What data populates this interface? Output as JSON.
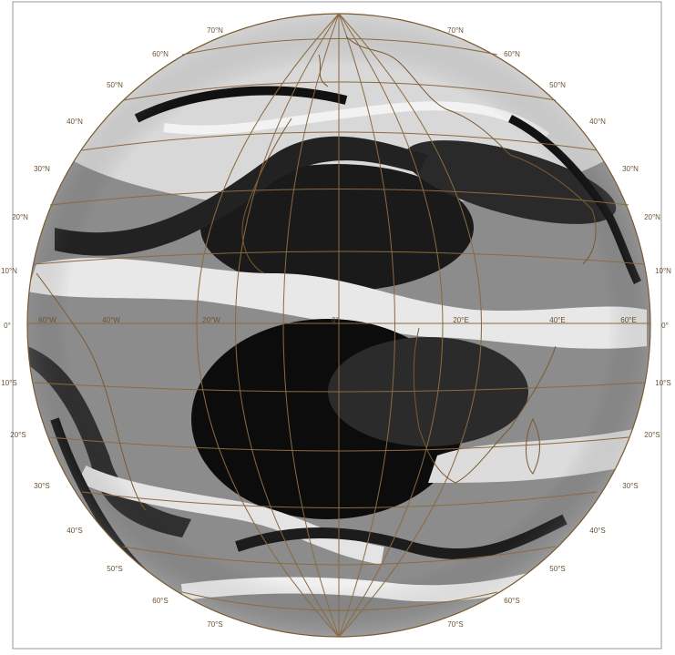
{
  "colors": {
    "background": "#ffffff",
    "graticule": "#8a6a40",
    "coastline": "#7a5a30",
    "label": "#6a5234",
    "border": "#999999"
  },
  "labels": {
    "left": [
      "70°N",
      "60°N",
      "50°N",
      "40°N",
      "30°N",
      "20°N",
      "10°N",
      "0°",
      "10°S",
      "20°S",
      "30°S",
      "40°S",
      "50°S",
      "60°S",
      "70°S"
    ],
    "right": [
      "70°N",
      "60°N",
      "50°N",
      "40°N",
      "30°N",
      "20°N",
      "10°N",
      "0°",
      "10°S",
      "20°S",
      "30°S",
      "40°S",
      "50°S",
      "60°S",
      "70°S"
    ],
    "meridians": [
      "60°W",
      "40°W",
      "20°W",
      "0°",
      "20°E",
      "40°E",
      "60°E"
    ]
  }
}
